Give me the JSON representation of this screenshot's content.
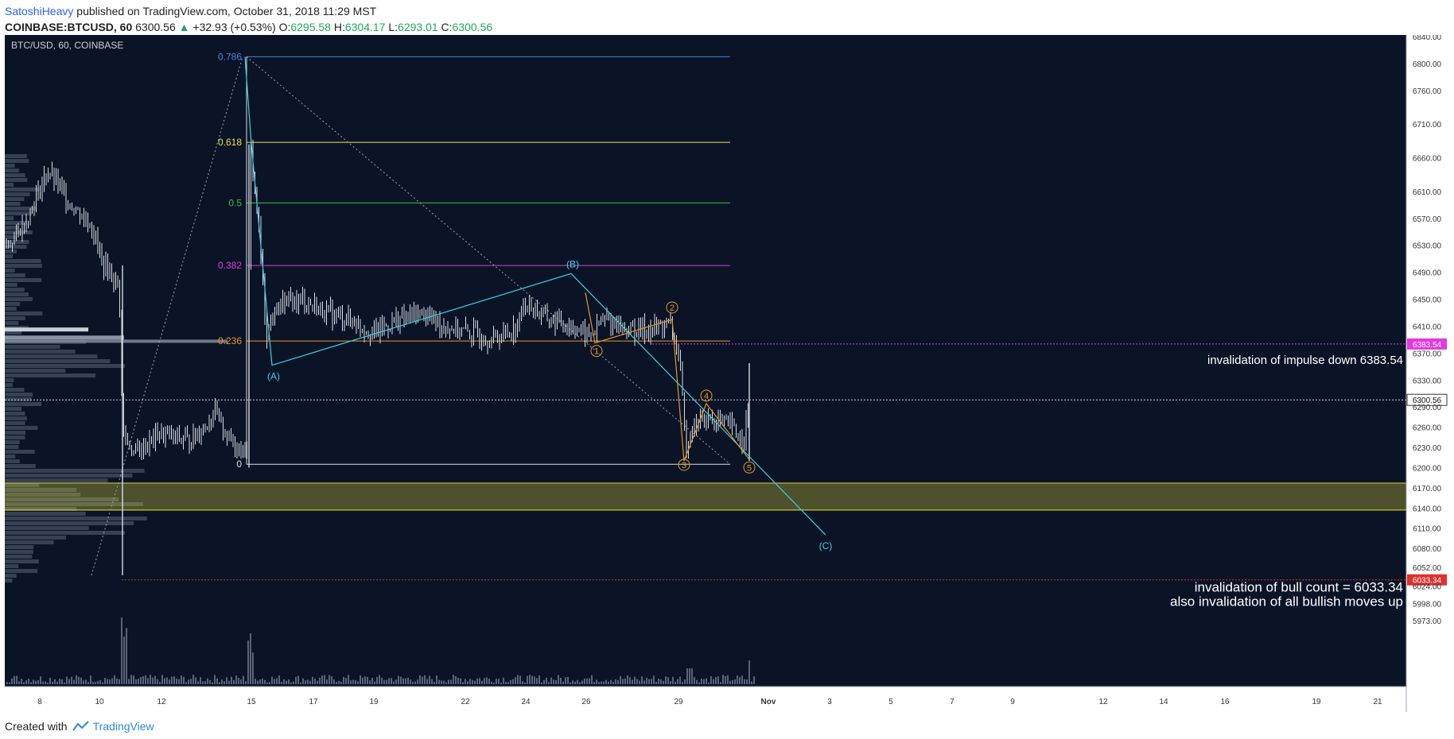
{
  "header": {
    "user": "SatoshiHeavy",
    "published": "published on TradingView.com, October 31, 2018 11:29 MST",
    "symbol": "COINBASE:BTCUSD, 60",
    "last": "6300.56",
    "change": "+32.93 (+0.53%)",
    "open_label": "O:",
    "open": "6295.58",
    "high_label": "H:",
    "high": "6304.17",
    "low_label": "L:",
    "low": "6293.01",
    "close_label": "C:",
    "close": "6300.56"
  },
  "footer": {
    "created_with": "Created with",
    "brand": "TradingView"
  },
  "chart_data": {
    "type": "candlestick",
    "title": "BTC/USD, 60, COINBASE",
    "colors": {
      "background": "#0b1426",
      "candles": "#d8dde6",
      "fib_0786": "#4a7dd8",
      "fib_0618": "#e8e04a",
      "fib_05": "#39c23a",
      "fib_0382": "#d83ad8",
      "fib_0236": "#e8952a",
      "fib_0": "#d8dde6",
      "elliott_abc": "#3ad3e0",
      "elliott_impulse": "#e8952a",
      "zone": "#c8c23a",
      "invalid_impulse": "#e03ae0",
      "invalid_bull": "#e03030"
    },
    "ylim": [
      5960,
      6850
    ],
    "y_ticks": [
      6840,
      6800,
      6760,
      6710,
      6660,
      6610,
      6570,
      6530,
      6490,
      6450,
      6410,
      6370,
      6330,
      6290,
      6260,
      6230,
      6200,
      6170,
      6140,
      6110,
      6080,
      6052,
      6024,
      5998,
      5973
    ],
    "x_ticks": [
      "8",
      "10",
      "12",
      "15",
      "17",
      "19",
      "22",
      "24",
      "26",
      "29",
      "Nov",
      "3",
      "5",
      "7",
      "9",
      "12",
      "14",
      "16",
      "19",
      "21"
    ],
    "price_line": {
      "value": 6300.56,
      "label": "6300.56"
    },
    "fib_levels": [
      {
        "ratio": "0.786",
        "price": 6810
      },
      {
        "ratio": "0.618",
        "price": 6683
      },
      {
        "ratio": "0.5",
        "price": 6593
      },
      {
        "ratio": "0.382",
        "price": 6500
      },
      {
        "ratio": "0.236",
        "price": 6388
      },
      {
        "ratio": "0",
        "price": 6205
      }
    ],
    "support_zone": [
      6137,
      6177
    ],
    "invalidation_lines": [
      {
        "price": 6383.54,
        "label": "6383.54",
        "annotation": "invalidation of impulse down 6383.54"
      },
      {
        "price": 6033.34,
        "label": "6033.34",
        "annotation": "invalidation of bull count = 6033.34",
        "annotation2": "also invalidation of all bullish moves up"
      }
    ],
    "elliott_abc": [
      {
        "label": "(A)",
        "x": "15",
        "price": 6352
      },
      {
        "label": "(B)",
        "x": "25",
        "price": 6488
      },
      {
        "label": "(C)",
        "x": "Nov 3",
        "price": 6100
      }
    ],
    "elliott_impulse": [
      "1",
      "2",
      "3",
      "4",
      "5"
    ]
  }
}
